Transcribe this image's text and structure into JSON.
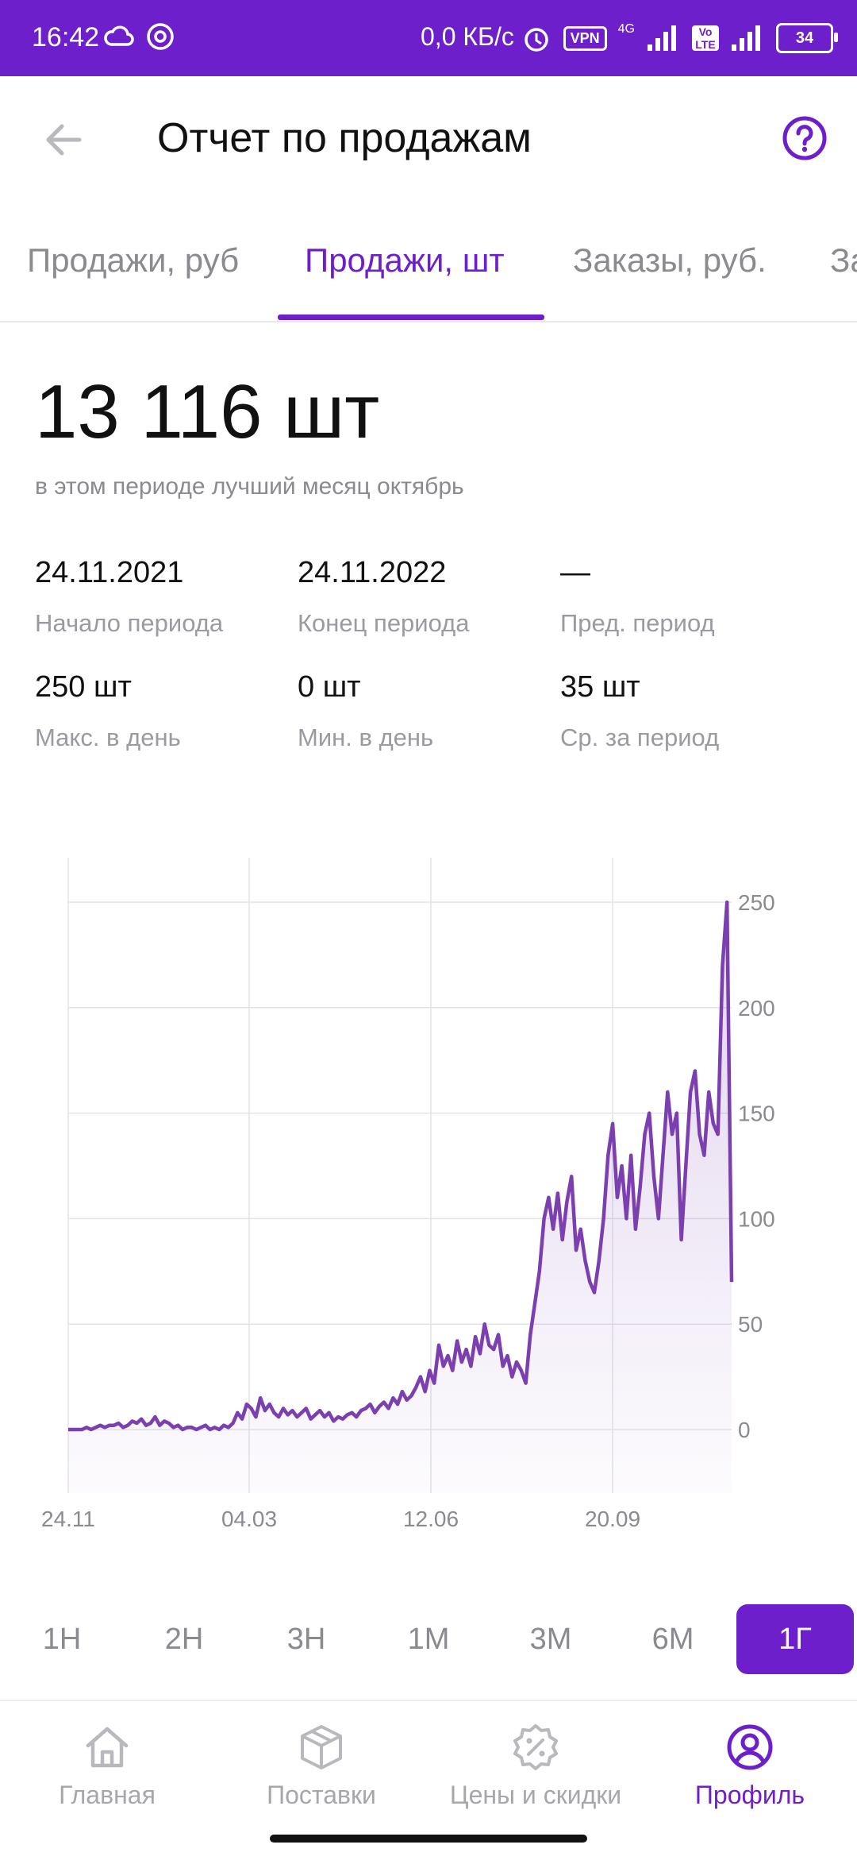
{
  "status_bar": {
    "time": "16:42",
    "net_speed": "0,0 КБ/с",
    "vpn": "VPN",
    "network": "4G",
    "volte": "Vo LTE",
    "battery": "34"
  },
  "header": {
    "title": "Отчет по продажам"
  },
  "tabs": [
    {
      "label": "Продажи, руб"
    },
    {
      "label": "Продажи, шт"
    },
    {
      "label": "Заказы, руб."
    },
    {
      "label": "За"
    }
  ],
  "summary": {
    "total": "13 116 шт",
    "subtitle": "в этом периоде лучший месяц октябрь",
    "stats": [
      {
        "value": "24.11.2021",
        "label": "Начало периода"
      },
      {
        "value": "24.11.2022",
        "label": "Конец периода"
      },
      {
        "value": "—",
        "label": "Пред. период"
      },
      {
        "value": "250 шт",
        "label": "Макс. в день"
      },
      {
        "value": "0 шт",
        "label": "Мин. в день"
      },
      {
        "value": "35 шт",
        "label": "Ср. за период"
      }
    ]
  },
  "chart_data": {
    "type": "area",
    "title": "",
    "xlabel": "",
    "ylabel": "",
    "ylim": [
      0,
      250
    ],
    "yticks": [
      "250",
      "200",
      "150",
      "100",
      "50",
      "0"
    ],
    "xticks": [
      "24.11",
      "04.03",
      "12.06",
      "20.09"
    ],
    "grid": true,
    "line_color": "#7b3fb0",
    "series": [
      {
        "x_start": "2021-11-24",
        "x_end": "2022-11-24",
        "values": [
          0,
          0,
          0,
          0,
          1,
          0,
          1,
          2,
          1,
          2,
          2,
          3,
          1,
          2,
          4,
          3,
          5,
          2,
          3,
          6,
          2,
          4,
          3,
          1,
          2,
          0,
          1,
          1,
          0,
          1,
          2,
          0,
          1,
          0,
          2,
          1,
          3,
          8,
          5,
          12,
          10,
          6,
          15,
          9,
          12,
          8,
          6,
          10,
          7,
          9,
          6,
          8,
          10,
          5,
          7,
          9,
          6,
          8,
          4,
          6,
          5,
          7,
          8,
          6,
          9,
          10,
          12,
          8,
          11,
          13,
          10,
          15,
          12,
          18,
          14,
          16,
          20,
          25,
          18,
          28,
          22,
          40,
          30,
          35,
          28,
          42,
          32,
          38,
          30,
          44,
          36,
          50,
          40,
          38,
          45,
          30,
          35,
          25,
          32,
          28,
          22,
          45,
          60,
          75,
          100,
          110,
          95,
          112,
          90,
          108,
          120,
          85,
          95,
          80,
          70,
          65,
          80,
          100,
          130,
          145,
          110,
          125,
          100,
          130,
          95,
          115,
          140,
          150,
          120,
          100,
          130,
          160,
          140,
          150,
          90,
          125,
          160,
          170,
          140,
          130,
          160,
          145,
          140,
          220,
          250,
          70
        ]
      }
    ]
  },
  "ranges": [
    {
      "label": "1Н"
    },
    {
      "label": "2Н"
    },
    {
      "label": "3Н"
    },
    {
      "label": "1М"
    },
    {
      "label": "3М"
    },
    {
      "label": "6М"
    },
    {
      "label": "1Г"
    }
  ],
  "bottom_nav": [
    {
      "label": "Главная",
      "icon": "home-icon"
    },
    {
      "label": "Поставки",
      "icon": "box-icon"
    },
    {
      "label": "Цены и скидки",
      "icon": "discount-badge-icon"
    },
    {
      "label": "Профиль",
      "icon": "profile-icon"
    }
  ],
  "colors": {
    "accent": "#6d1fcb",
    "chart_line": "#7b3fb0",
    "muted_text": "#8a8a8f"
  }
}
